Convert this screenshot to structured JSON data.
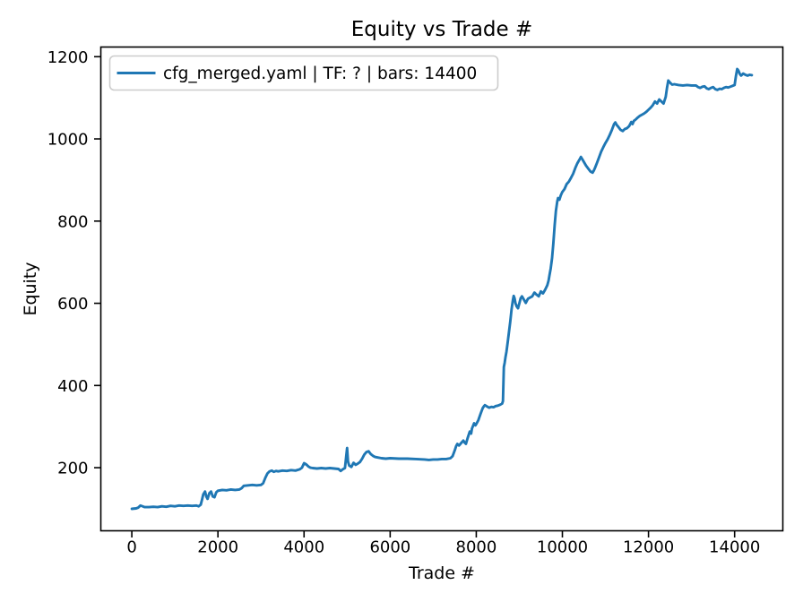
{
  "figure": {
    "background": "#ffffff",
    "text_color": "#000000",
    "spine_color": "#000000",
    "legend_border_color": "#cccccc"
  },
  "chart_data": {
    "type": "line",
    "title": "Equity vs Trade #",
    "xlabel": "Trade #",
    "ylabel": "Equity",
    "legend_label": "cfg_merged.yaml | TF: ? | bars: 14400",
    "legend_position": "upper left",
    "line_color": "#1f77b4",
    "grid": false,
    "x_ticks": [
      0,
      2000,
      4000,
      6000,
      8000,
      10000,
      12000,
      14000
    ],
    "y_ticks": [
      200,
      400,
      600,
      800,
      1000,
      1200
    ],
    "xlim": [
      -720,
      15120
    ],
    "ylim": [
      46.5,
      1223.5
    ],
    "series": [
      {
        "name": "cfg_merged.yaml | TF: ? | bars: 14400",
        "x": [
          0,
          100,
          150,
          200,
          250,
          300,
          400,
          500,
          600,
          700,
          800,
          900,
          1000,
          1100,
          1200,
          1300,
          1400,
          1500,
          1550,
          1600,
          1630,
          1660,
          1700,
          1730,
          1760,
          1800,
          1840,
          1880,
          1920,
          1960,
          2000,
          2100,
          2200,
          2300,
          2400,
          2500,
          2550,
          2600,
          2700,
          2800,
          2900,
          3000,
          3050,
          3100,
          3150,
          3200,
          3250,
          3300,
          3350,
          3400,
          3500,
          3600,
          3700,
          3800,
          3900,
          3950,
          4000,
          4050,
          4100,
          4150,
          4200,
          4300,
          4400,
          4500,
          4600,
          4700,
          4800,
          4850,
          4900,
          4950,
          5000,
          5020,
          5050,
          5100,
          5150,
          5200,
          5250,
          5300,
          5350,
          5400,
          5450,
          5500,
          5550,
          5600,
          5650,
          5700,
          5800,
          5900,
          6000,
          6200,
          6400,
          6600,
          6800,
          6900,
          7000,
          7100,
          7200,
          7300,
          7400,
          7450,
          7500,
          7530,
          7560,
          7600,
          7650,
          7700,
          7730,
          7760,
          7800,
          7850,
          7880,
          7900,
          7950,
          7980,
          8000,
          8050,
          8100,
          8150,
          8180,
          8200,
          8250,
          8300,
          8350,
          8400,
          8450,
          8500,
          8550,
          8600,
          8620,
          8640,
          8660,
          8680,
          8700,
          8730,
          8760,
          8790,
          8820,
          8850,
          8870,
          8890,
          8910,
          8940,
          8970,
          9000,
          9030,
          9060,
          9100,
          9150,
          9200,
          9250,
          9300,
          9350,
          9400,
          9450,
          9500,
          9550,
          9600,
          9650,
          9680,
          9700,
          9730,
          9760,
          9790,
          9820,
          9850,
          9880,
          9900,
          9930,
          9960,
          10000,
          10050,
          10100,
          10150,
          10200,
          10250,
          10300,
          10350,
          10400,
          10430,
          10460,
          10500,
          10550,
          10600,
          10650,
          10700,
          10730,
          10760,
          10800,
          10850,
          10900,
          10950,
          11000,
          11050,
          11100,
          11150,
          11200,
          11230,
          11260,
          11300,
          11350,
          11400,
          11450,
          11500,
          11550,
          11600,
          11630,
          11660,
          11700,
          11750,
          11800,
          11850,
          11900,
          11950,
          12000,
          12050,
          12100,
          12150,
          12200,
          12250,
          12300,
          12350,
          12400,
          12430,
          12460,
          12500,
          12550,
          12600,
          12700,
          12800,
          12900,
          13000,
          13100,
          13150,
          13200,
          13250,
          13300,
          13350,
          13400,
          13450,
          13500,
          13550,
          13600,
          13650,
          13700,
          13750,
          13800,
          13850,
          13900,
          13950,
          14000,
          14030,
          14060,
          14090,
          14120,
          14150,
          14200,
          14250,
          14300,
          14350,
          14400
        ],
        "y": [
          100,
          101,
          103,
          108,
          106,
          104,
          104,
          105,
          104,
          106,
          105,
          107,
          106,
          108,
          107,
          108,
          107,
          108,
          106,
          110,
          122,
          135,
          142,
          130,
          124,
          138,
          142,
          130,
          128,
          140,
          144,
          146,
          145,
          147,
          146,
          147,
          150,
          156,
          157,
          158,
          157,
          158,
          162,
          175,
          186,
          191,
          193,
          190,
          192,
          191,
          193,
          192,
          194,
          193,
          196,
          200,
          211,
          208,
          203,
          200,
          199,
          198,
          199,
          198,
          199,
          198,
          197,
          192,
          196,
          199,
          248,
          215,
          205,
          202,
          212,
          207,
          210,
          214,
          222,
          232,
          238,
          240,
          233,
          229,
          226,
          225,
          223,
          222,
          223,
          222,
          222,
          221,
          220,
          219,
          220,
          220,
          221,
          221,
          223,
          228,
          242,
          252,
          258,
          254,
          260,
          266,
          261,
          258,
          272,
          288,
          283,
          295,
          308,
          303,
          306,
          316,
          331,
          345,
          350,
          352,
          349,
          346,
          348,
          347,
          350,
          351,
          353,
          356,
          362,
          445,
          455,
          470,
          482,
          505,
          530,
          556,
          585,
          608,
          618,
          612,
          600,
          592,
          588,
          600,
          612,
          617,
          610,
          601,
          611,
          614,
          617,
          626,
          621,
          617,
          629,
          624,
          633,
          644,
          655,
          668,
          685,
          710,
          745,
          790,
          825,
          848,
          856,
          852,
          862,
          871,
          878,
          890,
          896,
          905,
          915,
          929,
          941,
          950,
          956,
          951,
          944,
          935,
          928,
          921,
          918,
          923,
          930,
          941,
          955,
          969,
          980,
          990,
          999,
          1010,
          1022,
          1036,
          1040,
          1034,
          1029,
          1022,
          1019,
          1024,
          1026,
          1031,
          1041,
          1036,
          1044,
          1047,
          1052,
          1056,
          1059,
          1062,
          1066,
          1071,
          1076,
          1082,
          1091,
          1086,
          1096,
          1091,
          1086,
          1102,
          1125,
          1142,
          1137,
          1132,
          1133,
          1131,
          1130,
          1131,
          1130,
          1130,
          1126,
          1124,
          1127,
          1128,
          1123,
          1121,
          1124,
          1126,
          1121,
          1119,
          1122,
          1121,
          1124,
          1126,
          1125,
          1127,
          1129,
          1131,
          1152,
          1170,
          1166,
          1158,
          1154,
          1159,
          1156,
          1154,
          1156,
          1155
        ]
      }
    ]
  }
}
